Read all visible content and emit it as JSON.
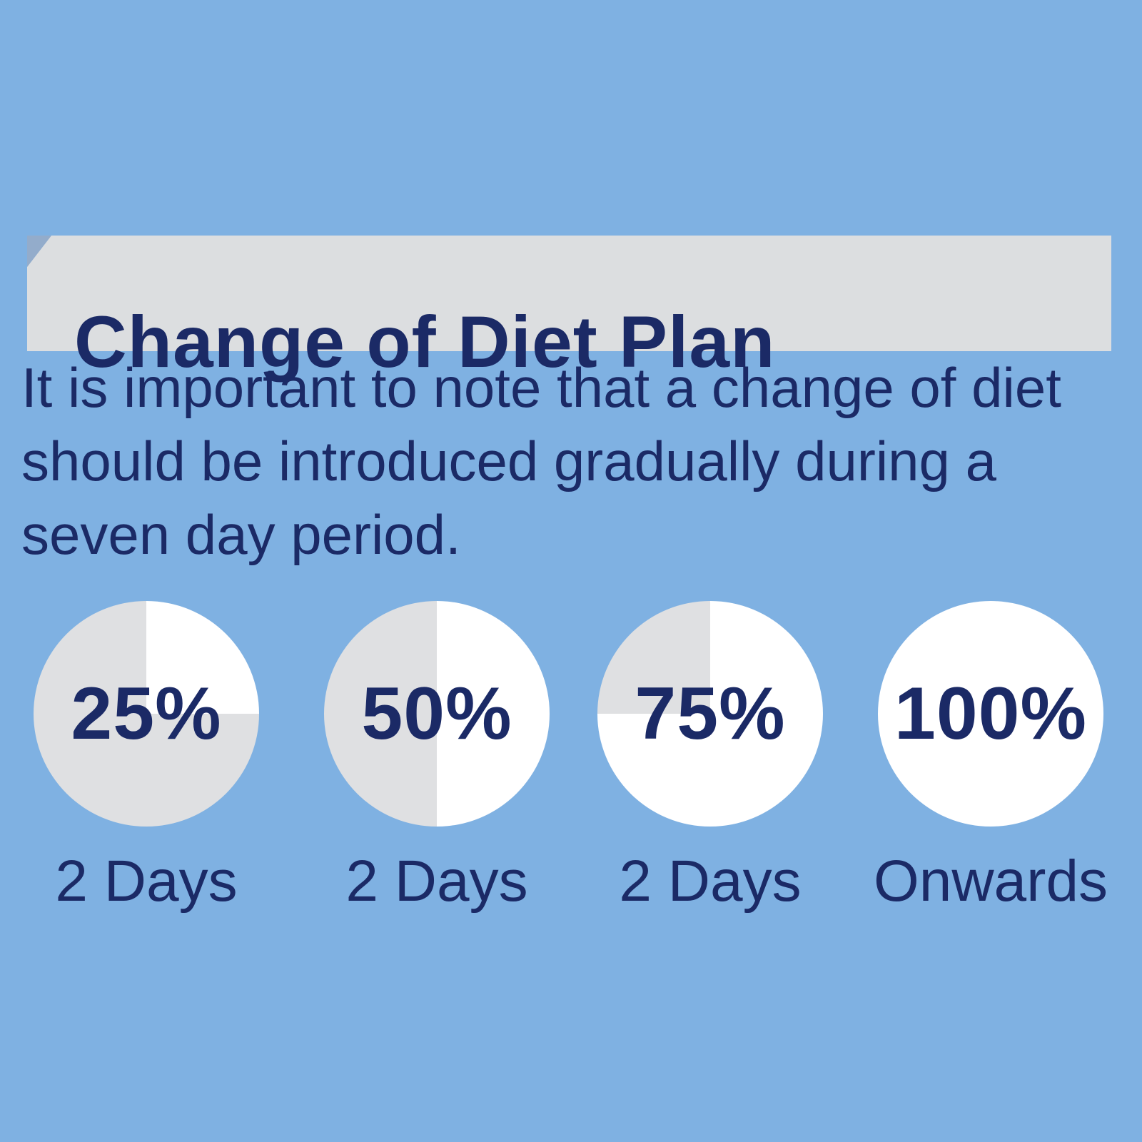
{
  "title_banner": {
    "title": "Change of Diet Plan"
  },
  "intro": {
    "lines": [
      "It is important to note that a change of diet",
      "should be introduced gradually during a",
      "seven day period."
    ]
  },
  "colors": {
    "background": "#7fb1e2",
    "navy_text": "#1b2a66",
    "banner_gray": "#dcdee0",
    "fold_blue": "#93accb",
    "pie_old_gray": "#dfe0e2",
    "pie_new_white": "#ffffff"
  },
  "chart_data": {
    "type": "pie",
    "title": "Change of Diet Plan",
    "subtitle": "It is important to note that a change of diet should be introduced gradually during a seven day period.",
    "stages": [
      {
        "pct_label": "25%",
        "new_diet_pct": 25,
        "old_diet_pct": 75,
        "duration": "2 Days"
      },
      {
        "pct_label": "50%",
        "new_diet_pct": 50,
        "old_diet_pct": 50,
        "duration": "2 Days"
      },
      {
        "pct_label": "75%",
        "new_diet_pct": 75,
        "old_diet_pct": 25,
        "duration": "2 Days"
      },
      {
        "pct_label": "100%",
        "new_diet_pct": 100,
        "old_diet_pct": 0,
        "duration": "Onwards"
      }
    ]
  }
}
